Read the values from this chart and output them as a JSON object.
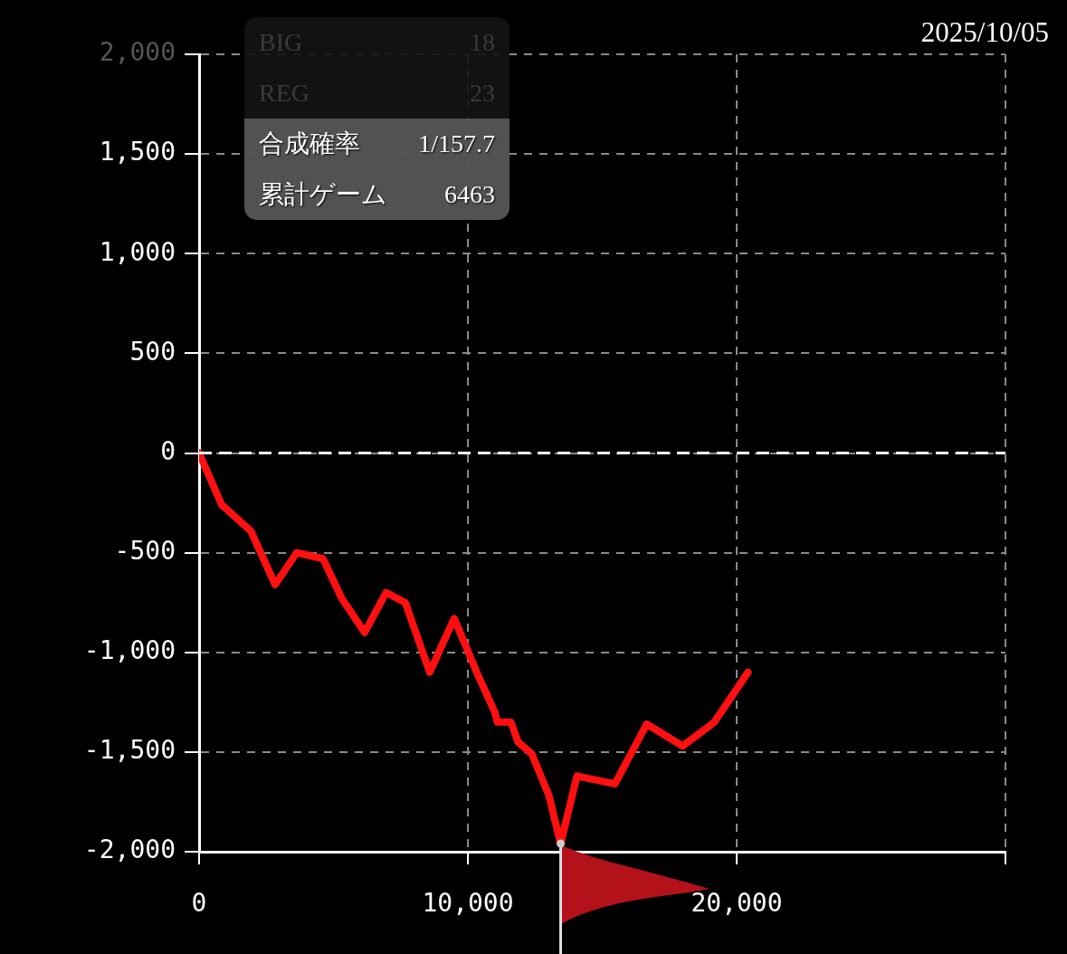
{
  "chart_data": {
    "type": "line",
    "x": [
      0,
      840,
      1920,
      2830,
      3630,
      4610,
      5310,
      6160,
      6960,
      7670,
      8580,
      9490,
      10330,
      11000,
      11100,
      11600,
      11870,
      12380,
      13020,
      13450,
      14060,
      15470,
      16650,
      17990,
      19170,
      20420
    ],
    "series": [
      {
        "color": "#ff1010",
        "values": [
          0,
          -260,
          -390,
          -660,
          -500,
          -530,
          -730,
          -900,
          -700,
          -750,
          -1100,
          -830,
          -1100,
          -1300,
          -1350,
          -1350,
          -1450,
          -1510,
          -1720,
          -1960,
          -1620,
          -1660,
          -1360,
          -1470,
          -1350,
          -1100
        ]
      }
    ],
    "xlim": [
      0,
      30000
    ],
    "xticks": [
      {
        "value": 0,
        "label": "0"
      },
      {
        "value": 10000,
        "label": "10,000"
      },
      {
        "value": 20000,
        "label": "20,000"
      },
      {
        "value": 30000,
        "label": null
      }
    ],
    "ylim": [
      -2000,
      2000
    ],
    "yticks": [
      {
        "value": -2000,
        "label": "-2,000"
      },
      {
        "value": -1500,
        "label": "-1,500"
      },
      {
        "value": -1000,
        "label": "-1,000"
      },
      {
        "value": -500,
        "label": "-500"
      },
      {
        "value": 0,
        "label": "0"
      },
      {
        "value": 500,
        "label": "500"
      },
      {
        "value": 1000,
        "label": "1,000"
      },
      {
        "value": 1500,
        "label": "1,500"
      },
      {
        "value": 2000,
        "label": "2,000"
      }
    ],
    "ref_lines": [
      {
        "axis": "y",
        "value": 0,
        "color": "#ffffff",
        "line_style": "dashed"
      }
    ],
    "grid": true,
    "legend": false,
    "marker": "none",
    "line_style": "solid",
    "annotations": [
      "BIG",
      "18",
      "REG",
      "23",
      "合成確率",
      "1/157.7",
      "累計ゲーム",
      "6463",
      "2025/10/05"
    ]
  }
}
